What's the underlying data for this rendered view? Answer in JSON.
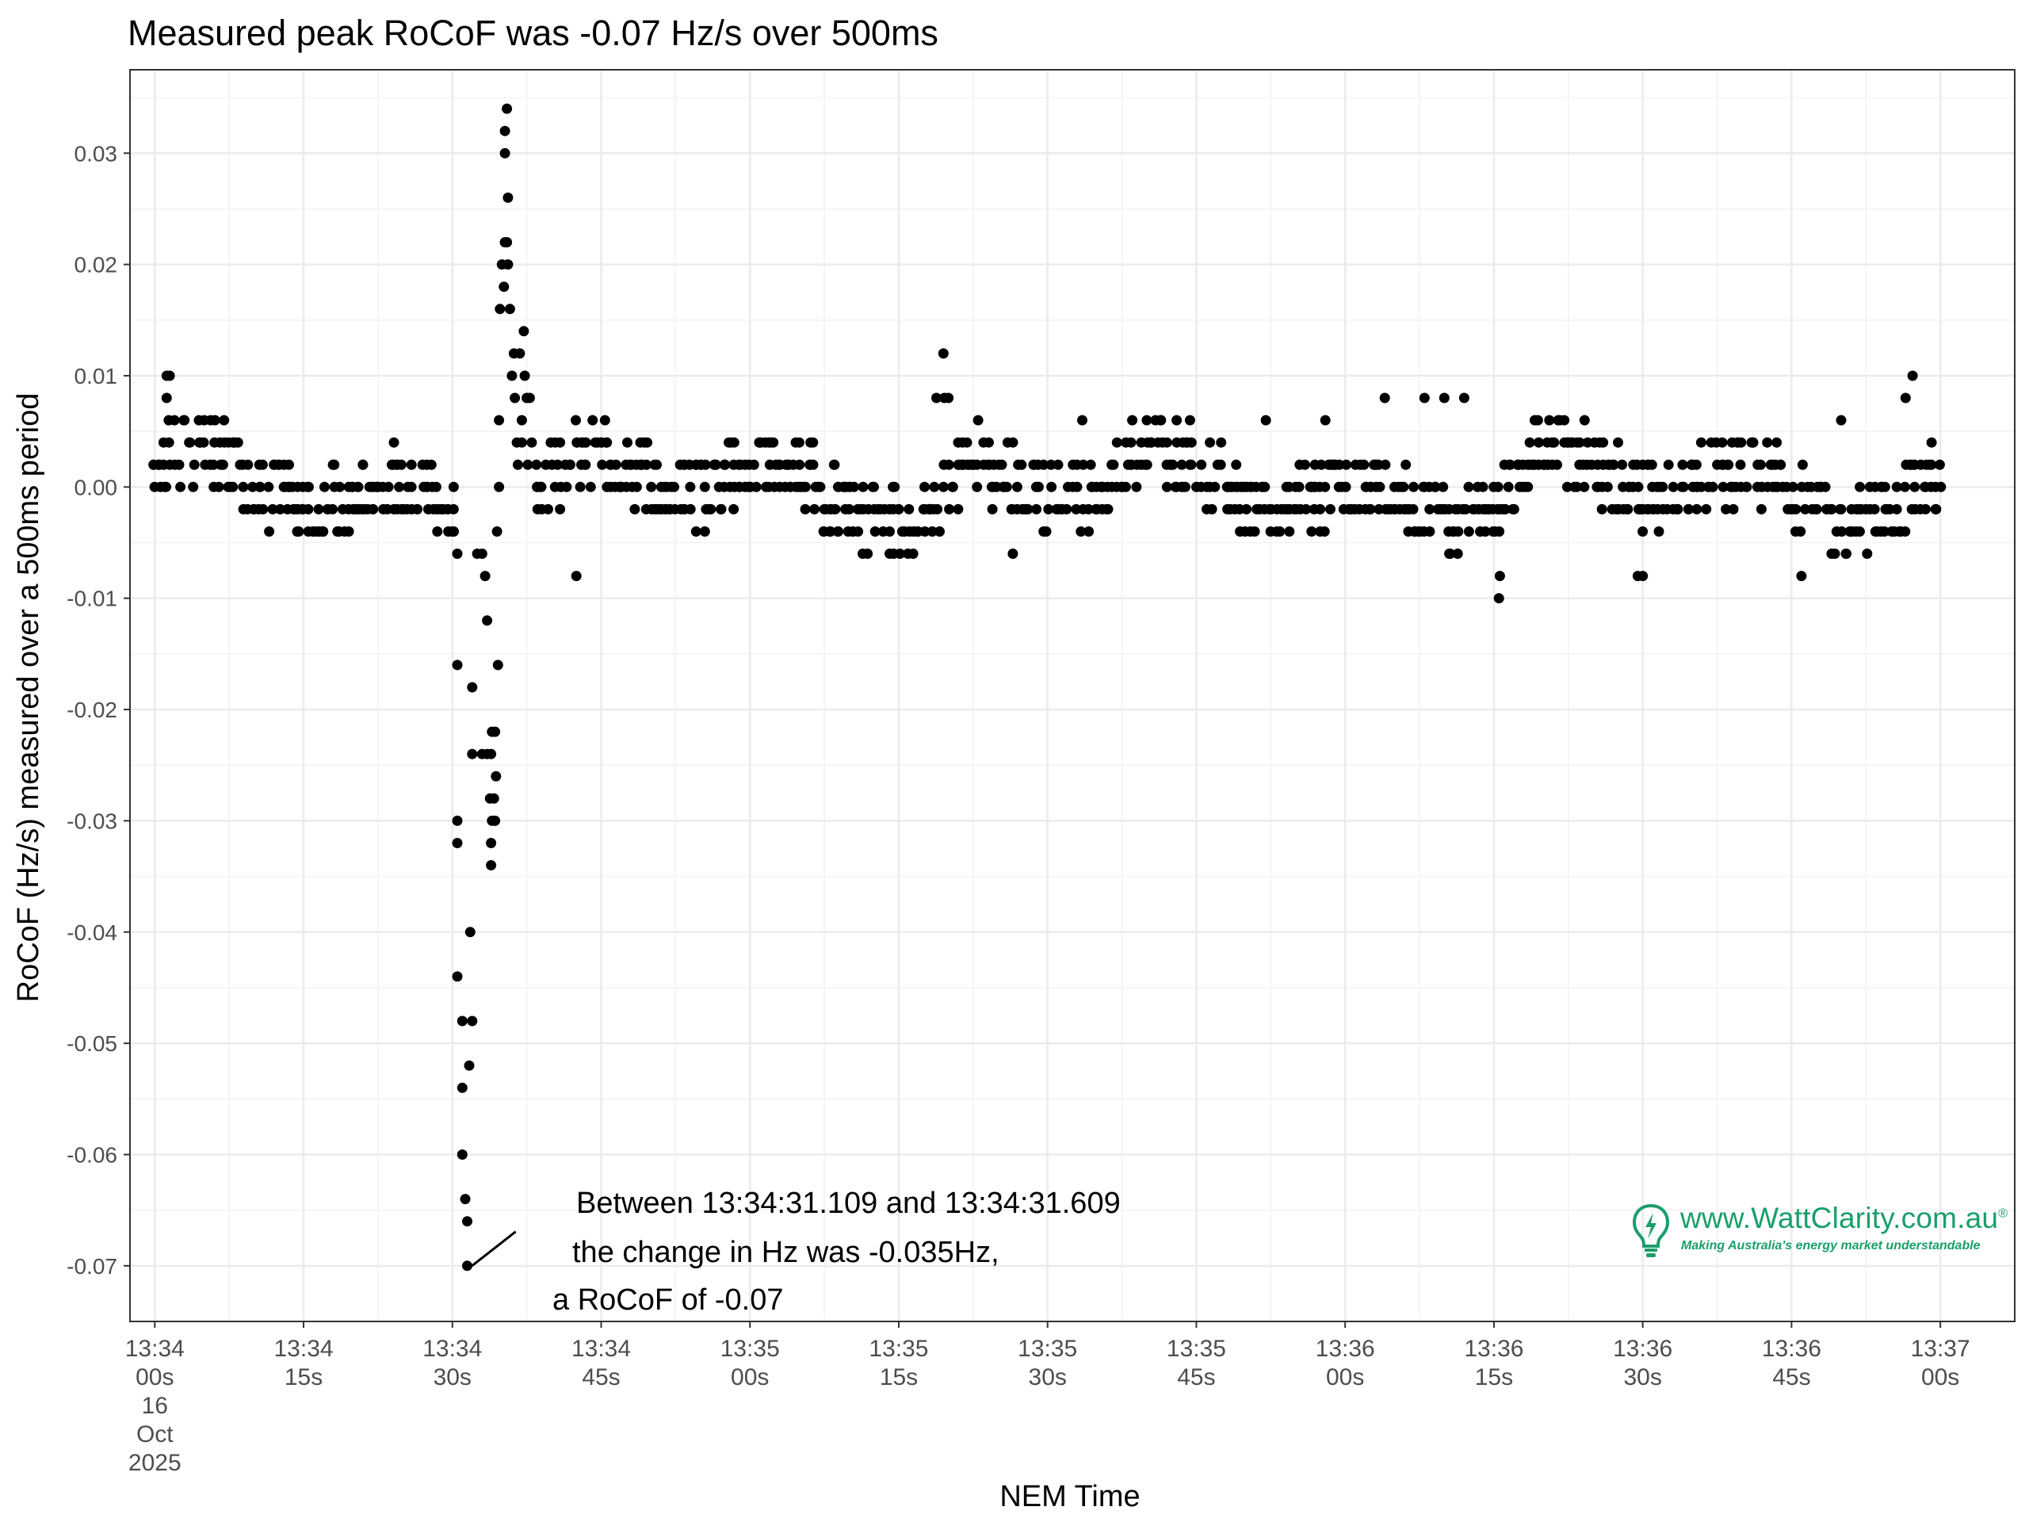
{
  "chart_data": {
    "type": "scatter",
    "title": "Measured peak RoCoF was -0.07 Hz/s over 500ms",
    "xlabel": "NEM Time",
    "ylabel": "RoCoF (Hz/s) measured over a 500ms period",
    "x_unit": "seconds after 13:34:00",
    "xlim": [
      -2.5,
      187.5
    ],
    "ylim": [
      -0.075,
      0.0375
    ],
    "yticks": [
      0.03,
      0.02,
      0.01,
      0.0,
      -0.01,
      -0.02,
      -0.03,
      -0.04,
      -0.05,
      -0.06,
      -0.07
    ],
    "ytick_labels": [
      "0.03",
      "0.02",
      "0.01",
      "0.00",
      "-0.01",
      "-0.02",
      "-0.03",
      "-0.04",
      "-0.05",
      "-0.06",
      "-0.07"
    ],
    "xticks": [
      {
        "t": 0,
        "lines": [
          "13:34",
          "00s",
          "16",
          "Oct",
          "2025"
        ]
      },
      {
        "t": 15,
        "lines": [
          "13:34",
          "15s"
        ]
      },
      {
        "t": 30,
        "lines": [
          "13:34",
          "30s"
        ]
      },
      {
        "t": 45,
        "lines": [
          "13:34",
          "45s"
        ]
      },
      {
        "t": 60,
        "lines": [
          "13:35",
          "00s"
        ]
      },
      {
        "t": 75,
        "lines": [
          "13:35",
          "15s"
        ]
      },
      {
        "t": 90,
        "lines": [
          "13:35",
          "30s"
        ]
      },
      {
        "t": 105,
        "lines": [
          "13:35",
          "45s"
        ]
      },
      {
        "t": 120,
        "lines": [
          "13:36",
          "00s"
        ]
      },
      {
        "t": 135,
        "lines": [
          "13:36",
          "15s"
        ]
      },
      {
        "t": 150,
        "lines": [
          "13:36",
          "30s"
        ]
      },
      {
        "t": 165,
        "lines": [
          "13:36",
          "45s"
        ]
      },
      {
        "t": 180,
        "lines": [
          "13:37",
          "00s"
        ]
      }
    ],
    "grid": true,
    "annotation": {
      "point": [
        31.5,
        -0.07
      ],
      "text_anchor": [
        37.5,
        -0.0675
      ],
      "lines": [
        "Between 13:34:31.109 and 13:34:31.609",
        "the change in Hz was -0.035Hz,",
        "a RoCoF of -0.07"
      ]
    },
    "spike_points": [
      [
        30.5,
        -0.006
      ],
      [
        30.5,
        -0.016
      ],
      [
        30.5,
        -0.03
      ],
      [
        30.5,
        -0.032
      ],
      [
        30.5,
        -0.044
      ],
      [
        31.0,
        -0.048
      ],
      [
        31.0,
        -0.054
      ],
      [
        31.0,
        -0.06
      ],
      [
        31.3,
        -0.064
      ],
      [
        31.5,
        -0.066
      ],
      [
        31.5,
        -0.07
      ],
      [
        31.7,
        -0.052
      ],
      [
        32.0,
        -0.048
      ],
      [
        31.8,
        -0.04
      ],
      [
        32.0,
        -0.018
      ],
      [
        32.0,
        -0.024
      ],
      [
        32.5,
        -0.006
      ],
      [
        33.0,
        -0.006
      ],
      [
        33.3,
        -0.008
      ],
      [
        33.5,
        -0.012
      ],
      [
        33.0,
        -0.024
      ],
      [
        33.5,
        -0.024
      ],
      [
        33.9,
        -0.024
      ],
      [
        33.8,
        -0.028
      ],
      [
        34.2,
        -0.028
      ],
      [
        34.0,
        -0.03
      ],
      [
        34.3,
        -0.03
      ],
      [
        34.4,
        -0.026
      ],
      [
        34.3,
        -0.022
      ],
      [
        34.0,
        -0.022
      ],
      [
        33.9,
        -0.032
      ],
      [
        33.9,
        -0.034
      ],
      [
        34.6,
        -0.016
      ],
      [
        34.5,
        -0.004
      ],
      [
        34.7,
        0.006
      ],
      [
        34.7,
        0.0
      ],
      [
        34.8,
        0.016
      ],
      [
        35.2,
        0.018
      ],
      [
        35.0,
        0.02
      ],
      [
        35.6,
        0.02
      ],
      [
        35.3,
        0.022
      ],
      [
        35.5,
        0.022
      ],
      [
        35.3,
        0.03
      ],
      [
        35.3,
        0.032
      ],
      [
        35.5,
        0.034
      ],
      [
        35.6,
        0.026
      ],
      [
        35.8,
        0.016
      ],
      [
        36.2,
        0.012
      ],
      [
        36.0,
        0.01
      ],
      [
        36.8,
        0.012
      ],
      [
        36.3,
        0.008
      ],
      [
        37.0,
        0.006
      ],
      [
        37.3,
        0.01
      ],
      [
        37.5,
        0.008
      ],
      [
        37.8,
        0.008
      ],
      [
        37.2,
        0.014
      ],
      [
        36.5,
        0.004
      ],
      [
        37.0,
        0.004
      ],
      [
        38.0,
        0.004
      ],
      [
        36.6,
        0.002
      ],
      [
        37.6,
        0.002
      ]
    ],
    "series_summary": "Remaining ~1100 points of 0.1s-sampled RoCoF values between 13:34:00 and 13:37:00 cluster within +/-0.01 Hz/s around 0, with local extrema 0.012 near 13:35:20, -0.01 near 13:36:16, 0.01 near 13:34:02 and 13:36:58."
  },
  "logo": {
    "url": "www.WattClarity.com.au",
    "registered": "®",
    "tagline": "Making Australia's energy market understandable"
  }
}
